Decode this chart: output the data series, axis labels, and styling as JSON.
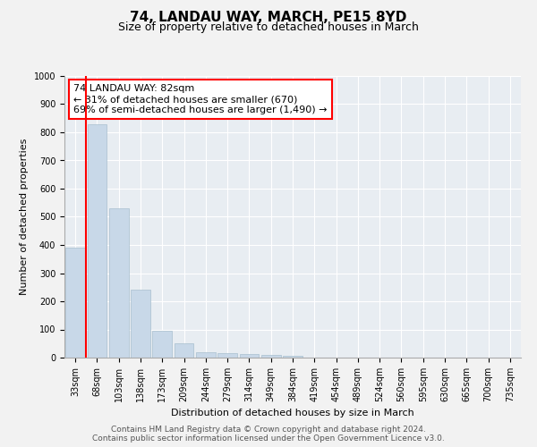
{
  "title1": "74, LANDAU WAY, MARCH, PE15 8YD",
  "title2": "Size of property relative to detached houses in March",
  "xlabel": "Distribution of detached houses by size in March",
  "ylabel": "Number of detached properties",
  "bar_labels": [
    "33sqm",
    "68sqm",
    "103sqm",
    "138sqm",
    "173sqm",
    "209sqm",
    "244sqm",
    "279sqm",
    "314sqm",
    "349sqm",
    "384sqm",
    "419sqm",
    "454sqm",
    "489sqm",
    "524sqm",
    "560sqm",
    "595sqm",
    "630sqm",
    "665sqm",
    "700sqm",
    "735sqm"
  ],
  "bar_values": [
    390,
    830,
    530,
    240,
    95,
    50,
    20,
    15,
    12,
    8,
    6,
    0,
    0,
    0,
    0,
    0,
    0,
    0,
    0,
    0,
    0
  ],
  "bar_color": "#c8d8e8",
  "bar_edge_color": "#a8bfcf",
  "red_line_x": 1.5,
  "annotation_title": "74 LANDAU WAY: 82sqm",
  "annotation_line1": "← 31% of detached houses are smaller (670)",
  "annotation_line2": "69% of semi-detached houses are larger (1,490) →",
  "ylim": [
    0,
    1000
  ],
  "yticks": [
    0,
    100,
    200,
    300,
    400,
    500,
    600,
    700,
    800,
    900,
    1000
  ],
  "footer1": "Contains HM Land Registry data © Crown copyright and database right 2024.",
  "footer2": "Contains public sector information licensed under the Open Government Licence v3.0.",
  "bg_color": "#f2f2f2",
  "plot_bg_color": "#e8edf2",
  "title1_fontsize": 11,
  "title2_fontsize": 9,
  "annotation_fontsize": 8,
  "axis_label_fontsize": 8,
  "tick_fontsize": 7,
  "footer_fontsize": 6.5
}
